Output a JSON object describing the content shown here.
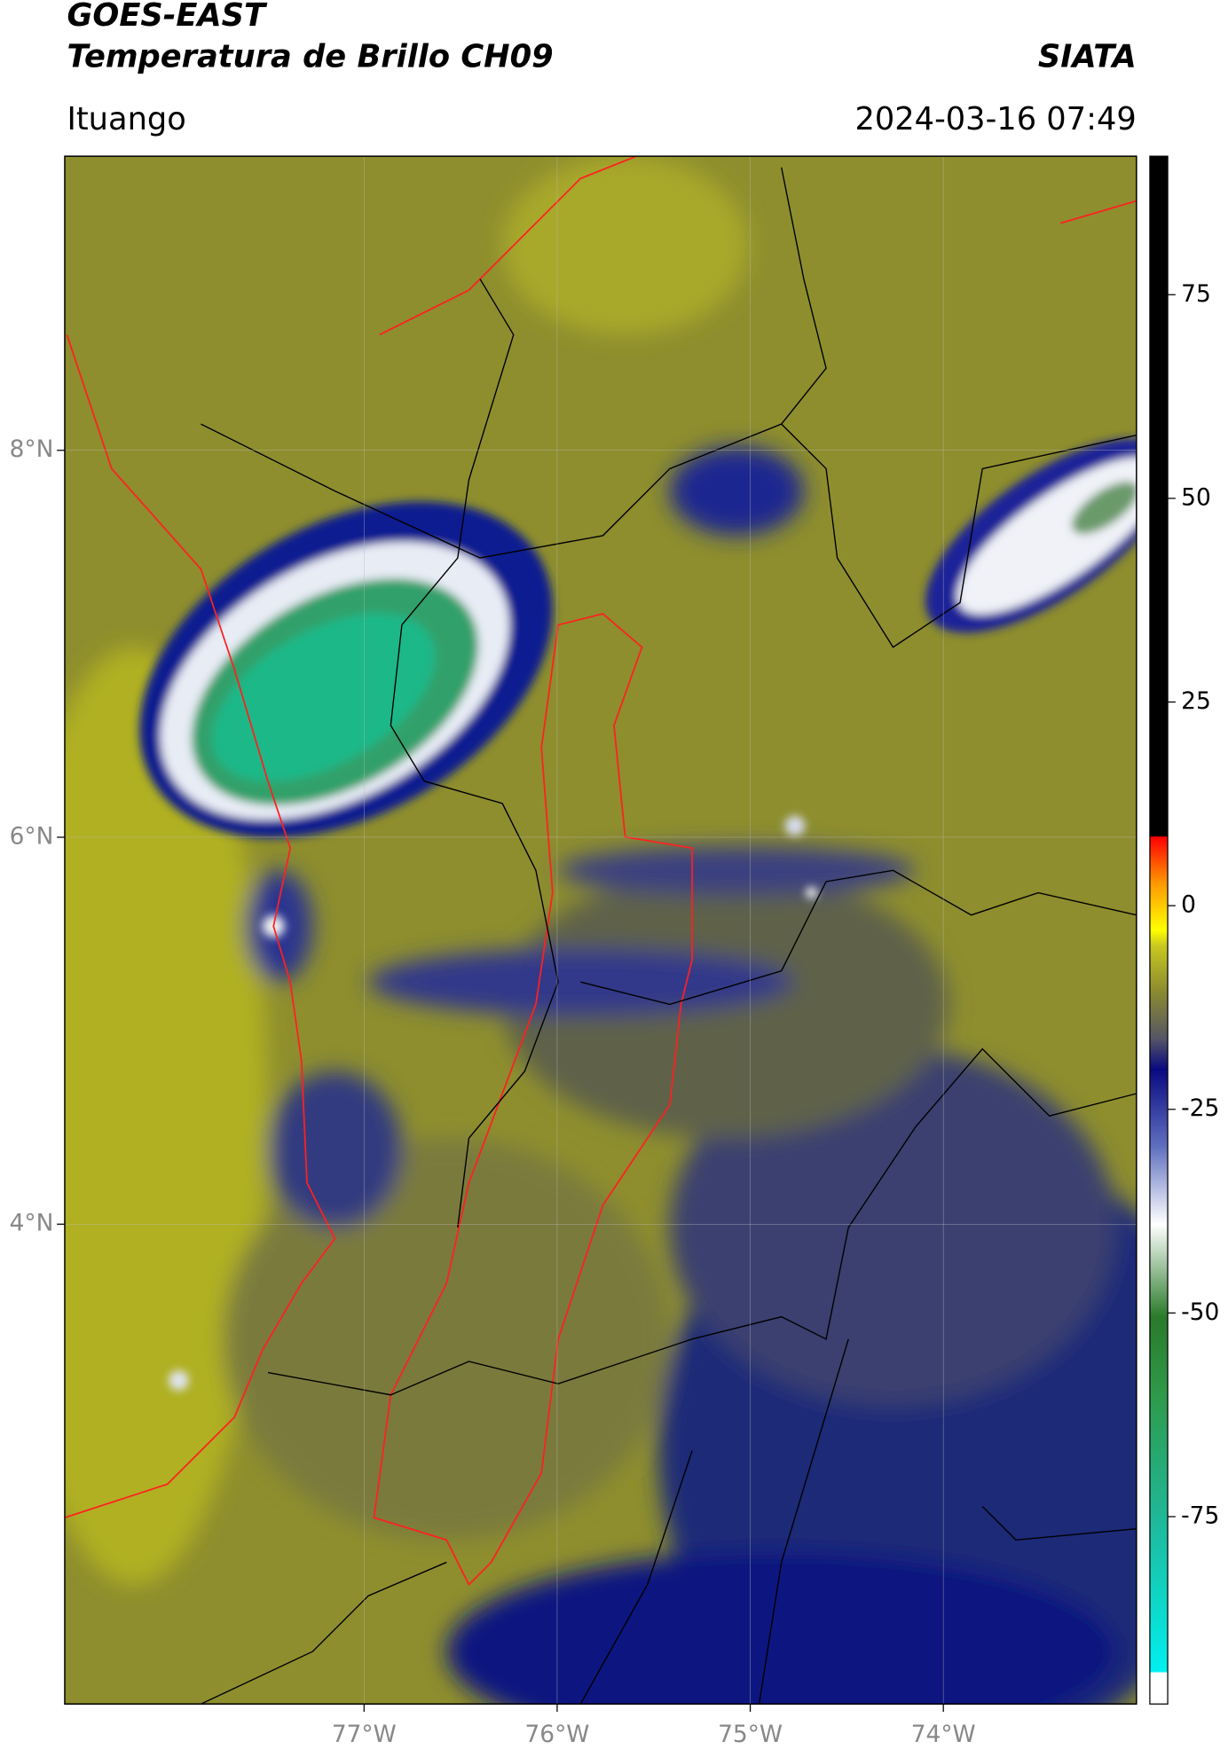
{
  "header": {
    "title": "GOES-EAST",
    "subtitle": "Temperatura de Brillo CH09",
    "source": "SIATA",
    "location": "Ituango",
    "datetime": "2024-03-16 07:49"
  },
  "map": {
    "xlim": [
      -78.55,
      -73.0
    ],
    "ylim": [
      1.52,
      9.52
    ],
    "xticks": [
      {
        "value": -77,
        "label": "77°W"
      },
      {
        "value": -76,
        "label": "76°W"
      },
      {
        "value": -75,
        "label": "75°W"
      },
      {
        "value": -74,
        "label": "74°W"
      }
    ],
    "yticks": [
      {
        "value": 8,
        "label": "8°N"
      },
      {
        "value": 6,
        "label": "6°N"
      },
      {
        "value": 4,
        "label": "4°N"
      }
    ],
    "grid": true
  },
  "colorbar": {
    "clim": [
      -98,
      92
    ],
    "ticks": [
      75,
      50,
      25,
      0,
      -25,
      -50,
      -75
    ]
  }
}
